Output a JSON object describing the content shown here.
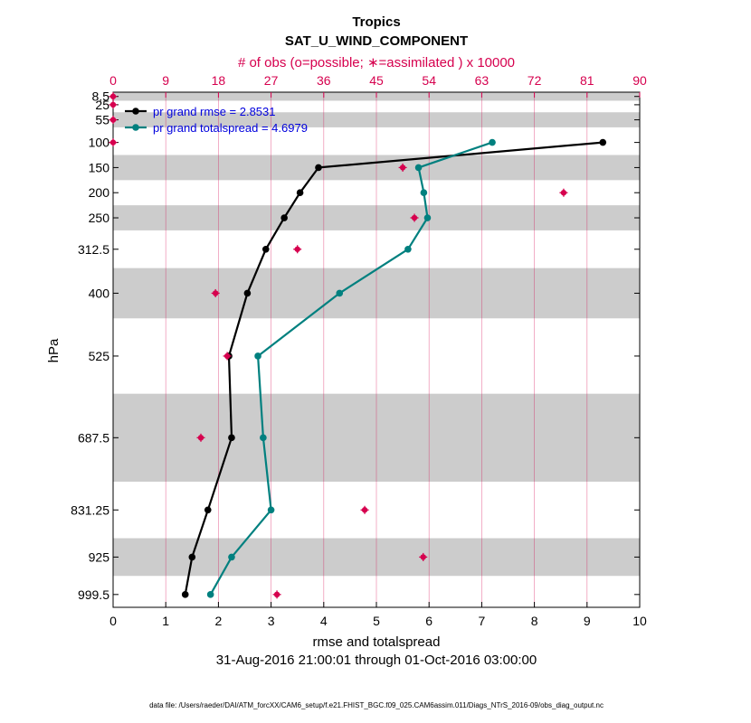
{
  "chart_data": {
    "type": "line",
    "title": "Tropics",
    "subtitle": "SAT_U_WIND_COMPONENT",
    "top_axis_label": "# of obs (o=possible; ∗=assimilated ) x 10000",
    "xlabel": "rmse and totalspread",
    "ylabel": "hPa",
    "date_range": "31-Aug-2016 21:00:01 through 01-Oct-2016 03:00:00",
    "footer": "data file: /Users/raeder/DAI/ATM_forcXX/CAM6_setup/f.e21.FHIST_BGC.f09_025.CAM6assim.011/Diags_NTrS_2016-09/obs_diag_output.nc",
    "xlim": [
      0,
      10
    ],
    "x_ticks": [
      "0",
      "1",
      "2",
      "3",
      "4",
      "5",
      "6",
      "7",
      "8",
      "9",
      "10"
    ],
    "top_xlim": [
      0,
      90
    ],
    "top_ticks": [
      "0",
      "9",
      "18",
      "27",
      "36",
      "45",
      "54",
      "63",
      "72",
      "81",
      "90"
    ],
    "ylim_hPa": [
      1025,
      0
    ],
    "levels": [
      8.5,
      25,
      55,
      100,
      150,
      200,
      250,
      312.5,
      400,
      525,
      687.5,
      831.25,
      925,
      999.5
    ],
    "level_labels": [
      "8.5",
      "25",
      "55",
      "100",
      "150",
      "200",
      "250",
      "312.5",
      "400",
      "525",
      "687.5",
      "831.25",
      "925",
      "999.5"
    ],
    "level_bands": [
      [
        0,
        17
      ],
      [
        17,
        40
      ],
      [
        40,
        70
      ],
      [
        70,
        125
      ],
      [
        125,
        175
      ],
      [
        175,
        225
      ],
      [
        225,
        275
      ],
      [
        275,
        350
      ],
      [
        350,
        450
      ],
      [
        450,
        600
      ],
      [
        600,
        775
      ],
      [
        775,
        887.5
      ],
      [
        887.5,
        962.5
      ],
      [
        962.5,
        1025
      ]
    ],
    "series": [
      {
        "name": "rmse",
        "legend": "pr grand rmse = 2.8531",
        "color": "#000000",
        "levels": [
          100,
          150,
          200,
          250,
          312.5,
          400,
          525,
          687.5,
          831.25,
          925,
          999.5
        ],
        "values": [
          9.3,
          3.9,
          3.55,
          3.25,
          2.9,
          2.55,
          2.2,
          2.25,
          1.8,
          1.5,
          1.37
        ]
      },
      {
        "name": "totalspread",
        "legend": "pr grand totalspread = 4.6979",
        "color": "#00807f",
        "levels": [
          100,
          150,
          200,
          250,
          312.5,
          400,
          525,
          687.5,
          831.25,
          925,
          999.5
        ],
        "values": [
          7.2,
          5.8,
          5.9,
          5.97,
          5.6,
          4.3,
          2.75,
          2.85,
          3.0,
          2.25,
          1.85
        ]
      }
    ],
    "obs_counts": {
      "name": "assimilated obs (x 10000)",
      "color": "#d6004e",
      "levels": [
        8.5,
        25,
        55,
        100,
        150,
        200,
        250,
        312.5,
        400,
        525,
        687.5,
        831.25,
        925,
        999.5
      ],
      "values": [
        0,
        0,
        0,
        0,
        49.5,
        77,
        51.5,
        31.5,
        17.5,
        19.5,
        15,
        43,
        53,
        28
      ]
    }
  }
}
